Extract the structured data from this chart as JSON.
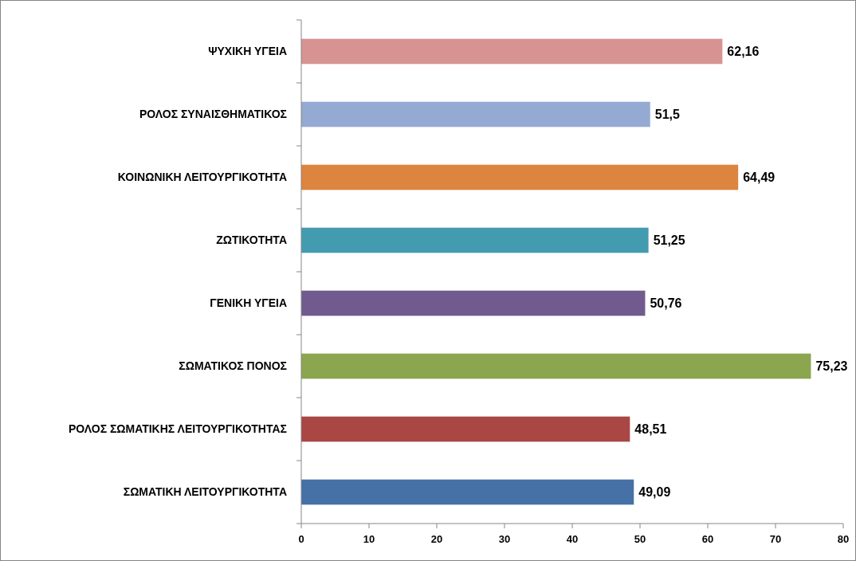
{
  "chart_data": {
    "type": "bar",
    "orientation": "horizontal",
    "categories": [
      "ΨΥΧΙΚΗ ΥΓΕΙΑ",
      "ΡΟΛΟΣ ΣΥΝΑΙΣΘΗΜΑΤΙΚΟΣ",
      "ΚΟΙΝΩΝΙΚΗ ΛΕΙΤΟΥΡΓΙΚΟΤΗΤΑ",
      "ΖΩΤΙΚΟΤΗΤΑ",
      "ΓΕΝΙΚΗ ΥΓΕΙΑ",
      "ΣΩΜΑΤΙΚΟΣ ΠΟΝΟΣ",
      "ΡΟΛΟΣ ΣΩΜΑΤΙΚΗΣ ΛΕΙΤΟΥΡΓΙΚΟΤΗΤΑΣ",
      "ΣΩΜΑΤΙΚΗ ΛΕΙΤΟΥΡΓΙΚΟΤΗΤΑ"
    ],
    "values": [
      62.16,
      51.5,
      64.49,
      51.25,
      50.76,
      75.23,
      48.51,
      49.09
    ],
    "value_labels": [
      "62,16",
      "51,5",
      "64,49",
      "51,25",
      "50,76",
      "75,23",
      "48,51",
      "49,09"
    ],
    "colors": [
      "#d69392",
      "#95aad3",
      "#dd843f",
      "#439bb0",
      "#715a8e",
      "#8ba64f",
      "#a94745",
      "#4671a6"
    ],
    "xlim": [
      0,
      80
    ],
    "xticks": [
      0,
      10,
      20,
      30,
      40,
      50,
      60,
      70,
      80
    ],
    "grid": false
  }
}
